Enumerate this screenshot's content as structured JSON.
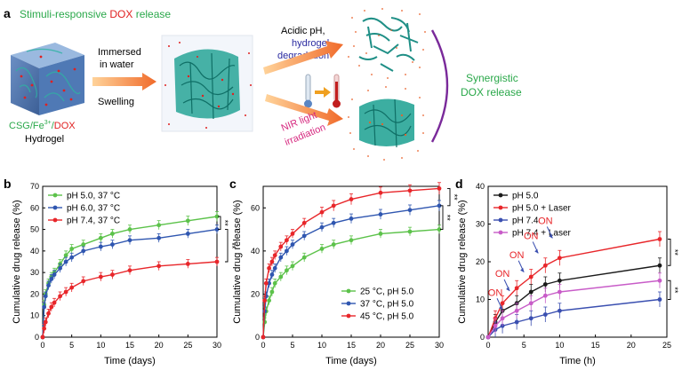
{
  "panel_a": {
    "label": "a",
    "title_part1": "Stimuli-responsive ",
    "title_part2": "DOX",
    "title_part3": " release",
    "step1_line1": "Immersed",
    "step1_line2": "in water",
    "step1_line3": "Swelling",
    "hydrogel_caption_line1_p1": "CSG/Fe",
    "hydrogel_caption_line1_sup": "3+",
    "hydrogel_caption_line1_p2": "/",
    "hydrogel_caption_line1_p3": "DOX",
    "hydrogel_caption_line2": "Hydrogel",
    "acid_line1": "Acidic pH,",
    "acid_line2": "hydrogel",
    "acid_line3": "degradation",
    "nir_line1": "NIR light",
    "nir_line2": "irradiation",
    "syn_line1": "Synergistic",
    "syn_line2": "DOX release",
    "colors": {
      "green": "#2aa84a",
      "red": "#e02020",
      "blue": "#2a2aa0",
      "magenta": "#d6287f",
      "purple": "#7a2a9a",
      "teal": "#1f8f86",
      "arrow": "#f07a3a"
    }
  },
  "chart_data": [
    {
      "panel": "b",
      "type": "line",
      "xlabel": "Time (days)",
      "ylabel": "Cumulative drug release (%)",
      "xlim": [
        0,
        30
      ],
      "ylim": [
        0,
        70
      ],
      "xticks": [
        0,
        5,
        10,
        15,
        20,
        25,
        30
      ],
      "yticks": [
        0,
        10,
        20,
        30,
        40,
        50,
        60,
        70
      ],
      "legend_position": "top-left",
      "significance": [
        "**",
        "**"
      ],
      "series": [
        {
          "name": "pH 5.0, 37 °C",
          "color": "#5cc24a",
          "x": [
            0,
            0.25,
            0.5,
            1,
            1.5,
            2,
            3,
            4,
            5,
            7,
            10,
            12,
            15,
            20,
            25,
            30
          ],
          "y": [
            0,
            15,
            20,
            25,
            28,
            30,
            34,
            38,
            41,
            43,
            46,
            48,
            50,
            52,
            54,
            56
          ]
        },
        {
          "name": "pH 6.0, 37 °C",
          "color": "#2f56b0",
          "x": [
            0,
            0.25,
            0.5,
            1,
            1.5,
            2,
            3,
            4,
            5,
            7,
            10,
            12,
            15,
            20,
            25,
            30
          ],
          "y": [
            0,
            14,
            19,
            24,
            27,
            29,
            32,
            35,
            37,
            40,
            42,
            43,
            45,
            46,
            48,
            50
          ]
        },
        {
          "name": "pH 7.4, 37 °C",
          "color": "#e8262a",
          "x": [
            0,
            0.25,
            0.5,
            1,
            1.5,
            2,
            3,
            4,
            5,
            7,
            10,
            12,
            15,
            20,
            25,
            30
          ],
          "y": [
            0,
            4,
            7,
            11,
            14,
            16,
            19,
            21,
            23,
            26,
            28,
            29,
            31,
            33,
            34,
            35
          ]
        }
      ]
    },
    {
      "panel": "c",
      "type": "line",
      "xlabel": "Time (days)",
      "ylabel": "Cumulative drug release (%)",
      "xlim": [
        0,
        30
      ],
      "ylim": [
        0,
        70
      ],
      "xticks": [
        0,
        5,
        10,
        15,
        20,
        25,
        30
      ],
      "yticks": [
        0,
        20,
        40,
        60
      ],
      "legend_position": "bottom-right",
      "significance": [
        "**",
        "**"
      ],
      "series": [
        {
          "name": "25 °C, pH 5.0",
          "color": "#5cc24a",
          "x": [
            0,
            0.25,
            0.5,
            1,
            1.5,
            2,
            3,
            4,
            5,
            7,
            10,
            12,
            15,
            20,
            25,
            30
          ],
          "y": [
            0,
            7,
            12,
            17,
            21,
            25,
            28,
            31,
            33,
            37,
            41,
            43,
            45,
            48,
            49,
            50
          ]
        },
        {
          "name": "37 °C, pH 5.0",
          "color": "#2f56b0",
          "x": [
            0,
            0.25,
            0.5,
            1,
            1.5,
            2,
            3,
            4,
            5,
            7,
            10,
            12,
            15,
            20,
            25,
            30
          ],
          "y": [
            0,
            12,
            19,
            25,
            29,
            32,
            37,
            40,
            43,
            47,
            51,
            53,
            55,
            57,
            59,
            61
          ]
        },
        {
          "name": "45 °C, pH 5.0",
          "color": "#e8262a",
          "x": [
            0,
            0.25,
            0.5,
            1,
            1.5,
            2,
            3,
            4,
            5,
            7,
            10,
            12,
            15,
            20,
            25,
            30
          ],
          "y": [
            0,
            17,
            25,
            32,
            35,
            38,
            42,
            45,
            48,
            53,
            58,
            61,
            64,
            67,
            68,
            69
          ]
        }
      ]
    },
    {
      "panel": "d",
      "type": "line",
      "xlabel": "Time (h)",
      "ylabel": "Cumulative drug release (%)",
      "xlim": [
        0,
        25
      ],
      "ylim": [
        0,
        40
      ],
      "xticks": [
        0,
        5,
        10,
        15,
        20,
        25
      ],
      "yticks": [
        0,
        10,
        20,
        30,
        40
      ],
      "legend_position": "top-left",
      "significance": [
        "**",
        "**"
      ],
      "series": [
        {
          "name": "pH 5.0",
          "color": "#1a1a1a",
          "x": [
            0,
            1,
            2,
            4,
            6,
            8,
            10,
            24
          ],
          "y": [
            0,
            4,
            7,
            9,
            12,
            14,
            15,
            19
          ]
        },
        {
          "name": "pH 5.0 + Laser",
          "color": "#e8262a",
          "x": [
            0,
            1,
            2,
            4,
            6,
            8,
            10,
            24
          ],
          "y": [
            0,
            5,
            9,
            13,
            16,
            19,
            21,
            26
          ]
        },
        {
          "name": "pH 7.4",
          "color": "#3a4fb0",
          "x": [
            0,
            1,
            2,
            4,
            6,
            8,
            10,
            24
          ],
          "y": [
            0,
            2,
            3,
            4,
            5,
            6,
            7,
            10
          ]
        },
        {
          "name": "pH 7.4 + Laser",
          "color": "#c85cc8",
          "x": [
            0,
            1,
            2,
            4,
            6,
            8,
            10,
            24
          ],
          "y": [
            0,
            3,
            5,
            7,
            9,
            11,
            12,
            15
          ]
        }
      ],
      "annotations": [
        {
          "text": "ON",
          "x": 1,
          "y": 11
        },
        {
          "text": "ON",
          "x": 2,
          "y": 16
        },
        {
          "text": "ON",
          "x": 4,
          "y": 21
        },
        {
          "text": "ON",
          "x": 6,
          "y": 26
        },
        {
          "text": "ON",
          "x": 8,
          "y": 30
        }
      ]
    }
  ]
}
